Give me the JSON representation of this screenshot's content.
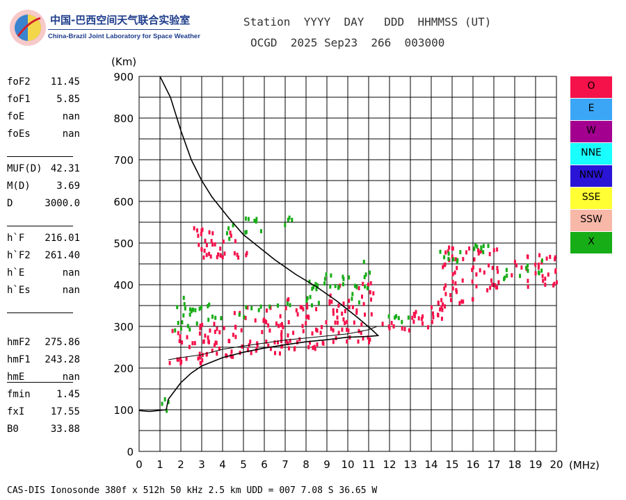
{
  "logo": {
    "name_cn": "中国-巴西空间天气联合实验室",
    "name_en": "China-Brazil Joint Laboratory for Space Weather"
  },
  "header": {
    "line1": "Station  YYYY  DAY   DDD  HHMMSS (UT)",
    "line2": "OCGD  2025 Sep23  266  003000"
  },
  "params": [
    {
      "name": "foF2",
      "value": "11.45"
    },
    {
      "name": "foF1",
      "value": "5.85"
    },
    {
      "name": "foE",
      "value": "nan"
    },
    {
      "name": "foEs",
      "value": "nan"
    },
    {
      "name": "MUF(D)",
      "value": "42.31"
    },
    {
      "name": "M(D)",
      "value": "3.69"
    },
    {
      "name": "D",
      "value": "3000.0"
    },
    {
      "name": "h`F",
      "value": "216.01"
    },
    {
      "name": "h`F2",
      "value": "261.40"
    },
    {
      "name": "h`E",
      "value": "nan"
    },
    {
      "name": "h`Es",
      "value": "nan"
    },
    {
      "name": "hmF2",
      "value": "275.86"
    },
    {
      "name": "hmF1",
      "value": "243.28"
    },
    {
      "name": "hmE",
      "value": "nan"
    },
    {
      "name": "fmin",
      "value": "1.45"
    },
    {
      "name": "fxI",
      "value": "17.55"
    },
    {
      "name": "B0",
      "value": "33.88"
    }
  ],
  "legend": [
    {
      "label": "O",
      "color": "#f5114a"
    },
    {
      "label": "E",
      "color": "#3ba6f5"
    },
    {
      "label": "W",
      "color": "#a3008f"
    },
    {
      "label": "NNE",
      "color": "#19ffff"
    },
    {
      "label": "NNW",
      "color": "#2a14d6"
    },
    {
      "label": "SSE",
      "color": "#ffff33"
    },
    {
      "label": "SSW",
      "color": "#f7b8a8"
    },
    {
      "label": "X",
      "color": "#17ad17"
    }
  ],
  "footer": "CAS-DIS Ionosonde 380f x 512h 50 kHz 2.5 km UDD = 007 7.08 S 36.65 W",
  "chart_data": {
    "type": "scatter",
    "xlabel": "(MHz)",
    "ylabel": "(Km)",
    "xlim": [
      0,
      20
    ],
    "ylim": [
      0,
      900
    ],
    "xticks": [
      0,
      1,
      2,
      3,
      4,
      5,
      6,
      7,
      8,
      9,
      10,
      11,
      12,
      13,
      14,
      15,
      16,
      17,
      18,
      19,
      20
    ],
    "yticks": [
      0,
      100,
      200,
      300,
      400,
      500,
      600,
      700,
      800,
      900
    ],
    "grid": true,
    "o_trace_bands": [
      {
        "f0": 1.4,
        "f1": 3.0,
        "lo": 215,
        "hi": 315
      },
      {
        "f0": 3.0,
        "f1": 5.0,
        "lo": 230,
        "hi": 340
      },
      {
        "f0": 5.0,
        "f1": 7.0,
        "lo": 240,
        "hi": 360
      },
      {
        "f0": 7.0,
        "f1": 9.0,
        "lo": 250,
        "hi": 375
      },
      {
        "f0": 9.0,
        "f1": 11.2,
        "lo": 265,
        "hi": 410
      },
      {
        "f0": 11.6,
        "f1": 13.0,
        "lo": 295,
        "hi": 330
      },
      {
        "f0": 13.0,
        "f1": 14.5,
        "lo": 300,
        "hi": 390
      },
      {
        "f0": 14.5,
        "f1": 16.0,
        "lo": 350,
        "hi": 500
      },
      {
        "f0": 16.0,
        "f1": 17.2,
        "lo": 380,
        "hi": 500
      },
      {
        "f0": 17.8,
        "f1": 20.0,
        "lo": 400,
        "hi": 480
      },
      {
        "f0": 2.4,
        "f1": 5.2,
        "lo": 470,
        "hi": 550
      }
    ],
    "x_trace_points": [
      [
        2.0,
        365
      ],
      [
        2.3,
        345
      ],
      [
        2.6,
        330
      ],
      [
        3.1,
        350
      ],
      [
        4.3,
        530
      ],
      [
        5.1,
        550
      ],
      [
        5.6,
        545
      ],
      [
        7.1,
        555
      ],
      [
        8.2,
        395
      ],
      [
        8.6,
        405
      ],
      [
        9.0,
        420
      ],
      [
        9.8,
        410
      ],
      [
        10.3,
        380
      ],
      [
        10.8,
        440
      ],
      [
        1.3,
        120
      ],
      [
        14.6,
        485
      ],
      [
        15.2,
        470
      ],
      [
        16.1,
        500
      ],
      [
        16.6,
        480
      ],
      [
        17.6,
        430
      ],
      [
        18.4,
        440
      ],
      [
        19.2,
        450
      ]
    ],
    "profile_curve": [
      [
        0.0,
        98
      ],
      [
        0.5,
        96
      ],
      [
        1.3,
        100
      ],
      [
        1.4,
        125
      ],
      [
        1.7,
        145
      ],
      [
        2.0,
        165
      ],
      [
        2.5,
        188
      ],
      [
        3.0,
        205
      ],
      [
        4.0,
        225
      ],
      [
        5.0,
        238
      ],
      [
        6.0,
        248
      ],
      [
        7.0,
        256
      ],
      [
        8.0,
        263
      ],
      [
        9.0,
        268
      ],
      [
        10.0,
        274
      ],
      [
        11.0,
        276
      ],
      [
        11.45,
        278
      ],
      [
        11.2,
        290
      ],
      [
        10.5,
        320
      ],
      [
        9.5,
        360
      ],
      [
        8.5,
        395
      ],
      [
        7.5,
        425
      ],
      [
        6.5,
        460
      ],
      [
        5.5,
        500
      ],
      [
        5.0,
        520
      ],
      [
        4.3,
        560
      ],
      [
        3.5,
        610
      ],
      [
        3.0,
        650
      ],
      [
        2.5,
        700
      ],
      [
        2.0,
        770
      ],
      [
        1.5,
        850
      ],
      [
        1.0,
        900
      ]
    ],
    "virtual_height_trace": [
      [
        1.4,
        220
      ],
      [
        2.0,
        225
      ],
      [
        3.0,
        232
      ],
      [
        4.0,
        245
      ],
      [
        5.0,
        253
      ],
      [
        6.0,
        260
      ],
      [
        7.0,
        267
      ],
      [
        8.0,
        272
      ],
      [
        9.0,
        277
      ],
      [
        10.0,
        282
      ],
      [
        11.0,
        292
      ],
      [
        11.4,
        300
      ]
    ]
  }
}
